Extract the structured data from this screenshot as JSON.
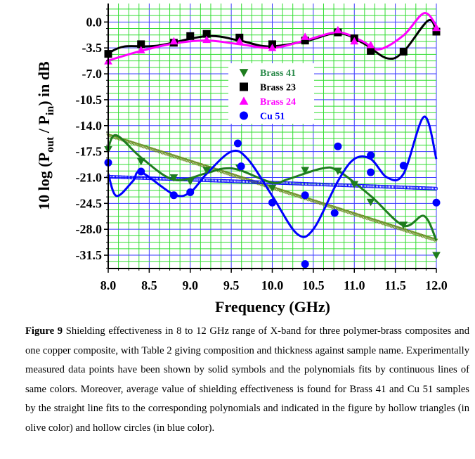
{
  "chart_data": {
    "type": "line",
    "xlabel": "Frequency (GHz)",
    "ylabel_parts": [
      "10 log (P",
      "out",
      " / P",
      "in",
      ") in dB"
    ],
    "xlim": [
      8.0,
      12.0
    ],
    "ylim": [
      -33.3,
      2.5
    ],
    "xticks": [
      "8.0",
      "8.5",
      "9.0",
      "9.5",
      "10.0",
      "10.5",
      "11.0",
      "11.5",
      "12.0"
    ],
    "yticks": [
      "0.0",
      "-3.5",
      "-7.0",
      "-10.5",
      "-14.0",
      "-17.5",
      "-21.0",
      "-24.5",
      "-28.0",
      "-31.5"
    ],
    "grid": true,
    "legend_position": "center-top",
    "series": [
      {
        "name": "Brass 41",
        "color": "#1e7d1e",
        "label_color": "#2a8a4a",
        "marker": "triangle-down",
        "x": [
          8.0,
          8.4,
          8.8,
          9.0,
          9.2,
          9.6,
          10.0,
          10.4,
          10.8,
          11.0,
          11.2,
          11.6,
          12.0
        ],
        "y": [
          -17.2,
          -18.8,
          -21.0,
          -21.5,
          -20.0,
          -19.7,
          -22.4,
          -20.0,
          -20.1,
          -21.9,
          -24.3,
          -27.4,
          -31.5
        ],
        "fit_x": [
          8.0,
          8.1,
          8.4,
          8.8,
          9.2,
          9.4,
          9.6,
          10.0,
          10.2,
          10.6,
          10.8,
          11.2,
          11.6,
          11.85,
          12.0
        ],
        "fit_y": [
          -17.0,
          -15.3,
          -18.3,
          -21.3,
          -20.4,
          -19.8,
          -20.0,
          -21.7,
          -21.2,
          -19.8,
          -20.1,
          -23.5,
          -27.5,
          -26.2,
          -29.5
        ],
        "linear_fit": {
          "x": [
            8.0,
            12.0
          ],
          "y": [
            -15.3,
            -29.5
          ],
          "marker": "hollow-triangle",
          "color": "#6b8e23"
        }
      },
      {
        "name": "Brass 23",
        "color": "#000000",
        "label_color": "#000000",
        "marker": "square",
        "x": [
          8.0,
          8.4,
          8.8,
          9.0,
          9.2,
          9.6,
          10.0,
          10.4,
          10.8,
          11.0,
          11.2,
          11.6,
          12.0
        ],
        "y": [
          -4.3,
          -3.0,
          -2.8,
          -1.9,
          -1.6,
          -2.1,
          -3.0,
          -2.5,
          -1.4,
          -2.2,
          -3.9,
          -4.0,
          -1.3
        ],
        "fit_x": [
          8.0,
          8.2,
          8.6,
          9.2,
          9.6,
          9.95,
          10.4,
          10.8,
          11.1,
          11.4,
          11.6,
          11.9,
          12.0
        ],
        "fit_y": [
          -4.2,
          -3.3,
          -3.2,
          -1.9,
          -2.5,
          -3.3,
          -2.6,
          -1.5,
          -2.8,
          -4.9,
          -4.0,
          0.2,
          -1.3
        ]
      },
      {
        "name": "Brass 24",
        "color": "#ff00ff",
        "label_color": "#ff00ff",
        "marker": "triangle-up",
        "x": [
          8.0,
          8.4,
          8.8,
          9.2,
          9.6,
          10.0,
          10.4,
          10.8,
          11.0,
          11.2,
          12.0
        ],
        "y": [
          -5.3,
          -3.8,
          -2.6,
          -2.4,
          -2.6,
          -3.5,
          -2.0,
          -1.1,
          -2.6,
          -3.1,
          -0.8
        ],
        "fit_x": [
          8.0,
          8.4,
          8.8,
          9.2,
          9.6,
          10.0,
          10.4,
          10.8,
          11.1,
          11.3,
          11.6,
          11.85,
          12.0
        ],
        "fit_y": [
          -5.2,
          -3.9,
          -2.9,
          -2.5,
          -3.0,
          -3.5,
          -2.5,
          -1.4,
          -2.6,
          -3.7,
          -1.8,
          1.2,
          -0.5
        ]
      },
      {
        "name": "Cu 51",
        "color": "#0000ff",
        "label_color": "#0000ff",
        "marker": "circle",
        "x": [
          8.0,
          8.4,
          8.8,
          9.0,
          9.58,
          9.62,
          10.0,
          10.4,
          10.4,
          10.76,
          10.8,
          11.2,
          11.2,
          11.6,
          12.0
        ],
        "y": [
          -19.0,
          -20.2,
          -23.4,
          -23.0,
          -16.4,
          -19.5,
          -24.4,
          -23.4,
          -32.7,
          -25.8,
          -16.8,
          -18.0,
          -20.3,
          -19.4,
          -24.4
        ],
        "fit_x": [
          8.0,
          8.1,
          8.3,
          8.4,
          8.8,
          9.0,
          9.2,
          9.5,
          9.7,
          10.0,
          10.3,
          10.5,
          10.8,
          11.0,
          11.2,
          11.4,
          11.6,
          11.85,
          12.0
        ],
        "fit_y": [
          -20.5,
          -23.5,
          -21.5,
          -20.3,
          -23.3,
          -23.0,
          -20.5,
          -17.5,
          -18.5,
          -23.5,
          -28.6,
          -28.0,
          -21.5,
          -18.5,
          -18.5,
          -21.0,
          -20.5,
          -12.8,
          -18.5
        ],
        "linear_fit": {
          "x": [
            8.0,
            12.0
          ],
          "y": [
            -20.9,
            -22.5
          ],
          "marker": "hollow-circle",
          "color": "#0000ff"
        }
      }
    ]
  },
  "caption": {
    "label": "Figure 9",
    "text": " Shielding effectiveness in 8 to 12 GHz range of X-band for three polymer-brass composites and one copper composite, with Table 2 giving composition and thickness against sample name. Experimentally measured data points have been shown by solid symbols and the polynomials fits by continuous lines of same colors. Moreover, average value of shielding effectiveness is found for Brass 41 and Cu 51 samples by the straight line fits to the corresponding polynomials and indicated in the figure by hollow triangles (in olive color) and hollow circles (in blue color)."
  }
}
